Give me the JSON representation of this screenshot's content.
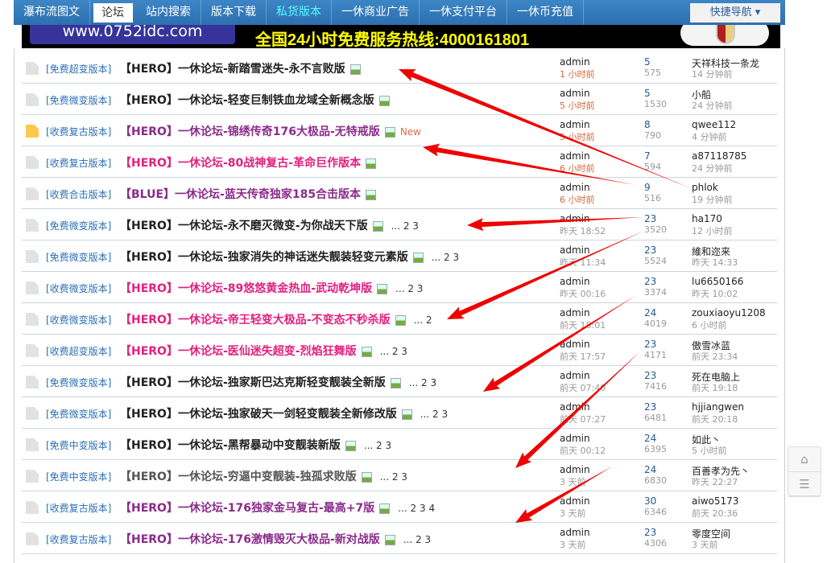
{
  "nav": {
    "items": [
      "瀑布流图文",
      "论坛",
      "站内搜索",
      "版本下载",
      "私货版本",
      "一休商业广告",
      "一休支付平台",
      "一休币充值"
    ],
    "active": 1,
    "highlight": 4,
    "quick": "快捷导航 ▾"
  },
  "banner": {
    "url": "www.0752idc.com",
    "hotline": "全国24小时免费服务热线:4000161801"
  },
  "colors": {
    "nav": "#2c6fae",
    "category": "#2a6fb6",
    "purple": "#8a2b8a",
    "magenta": "#e2207e",
    "arrow": "#ee0000"
  },
  "threads": [
    {
      "cat": "[免费超变版本]",
      "title": "【HERO】一休论坛-新踏雪迷失-永不言败版",
      "style": "black",
      "pages": "",
      "new": "",
      "author": "admin",
      "date": "1 小时前",
      "recent": true,
      "replies": "5",
      "views": "575",
      "last": "天祥科技一条龙",
      "ltime": "14 分钟前"
    },
    {
      "cat": "[免费微变版本]",
      "title": "【HERO】一休论坛-轻变巨制铁血龙域全新概念版",
      "style": "black",
      "pages": "",
      "new": "",
      "author": "admin",
      "date": "5 小时前",
      "recent": true,
      "replies": "5",
      "views": "1530",
      "last": "小船",
      "ltime": "24 分钟前"
    },
    {
      "cat": "[收费复古版本]",
      "title": "【HERO】一休论坛-锦绣传奇176大极品-无特戒版",
      "style": "purple",
      "pages": "",
      "new": "New",
      "author": "admin",
      "date": "5 小时前",
      "recent": true,
      "replies": "8",
      "views": "790",
      "last": "qwee112",
      "ltime": "4 分钟前"
    },
    {
      "cat": "[收费复古版本]",
      "title": "【HERO】一休论坛-80战神复古-革命巨作版本",
      "style": "magenta",
      "pages": "",
      "new": "",
      "author": "admin",
      "date": "6 小时前",
      "recent": true,
      "replies": "7",
      "views": "594",
      "last": "a87118785",
      "ltime": "24 分钟前"
    },
    {
      "cat": "[收费合击版本]",
      "title": "【BLUE】一休论坛-蓝天传奇独家185合击版本",
      "style": "purple",
      "pages": "",
      "new": "",
      "author": "admin",
      "date": "6 小时前",
      "recent": true,
      "replies": "9",
      "views": "516",
      "last": "phlok",
      "ltime": "19 分钟前"
    },
    {
      "cat": "[免费微变版本]",
      "title": "【HERO】一休论坛-永不磨灭微变-为你战天下版",
      "style": "black",
      "pages": "... 2  3",
      "new": "",
      "author": "admin",
      "date": "昨天 18:52",
      "recent": false,
      "replies": "23",
      "views": "3520",
      "last": "ha170",
      "ltime": "12 小时前"
    },
    {
      "cat": "[免费微变版本]",
      "title": "【HERO】一休论坛-独家消失的神话迷失靓装轻变元素版",
      "style": "black",
      "pages": "... 2  3",
      "new": "",
      "author": "admin",
      "date": "昨天 11:34",
      "recent": false,
      "replies": "23",
      "views": "5524",
      "last": "維和迩来",
      "ltime": "昨天 14:33"
    },
    {
      "cat": "[收费微变版本]",
      "title": "【HERO】一休论坛-89悠悠黄金热血-武动乾坤版",
      "style": "magenta",
      "pages": "... 2  3",
      "new": "",
      "author": "admin",
      "date": "昨天 00:16",
      "recent": false,
      "replies": "23",
      "views": "3374",
      "last": "lu6650166",
      "ltime": "昨天 10:02"
    },
    {
      "cat": "[收费微变版本]",
      "title": "【HERO】一休论坛-帝王轻变大极品-不变态不秒杀版",
      "style": "magenta",
      "pages": "... 2",
      "new": "",
      "author": "admin",
      "date": "前天 18:01",
      "recent": false,
      "replies": "24",
      "views": "4019",
      "last": "zouxiaoyu1208",
      "ltime": "6 小时前"
    },
    {
      "cat": "[收费超变版本]",
      "title": "【HERO】一休论坛-医仙迷失超变-烈焰狂舞版",
      "style": "magenta",
      "pages": "... 2  3",
      "new": "",
      "author": "admin",
      "date": "前天 17:57",
      "recent": false,
      "replies": "23",
      "views": "4171",
      "last": "傲雪冰蓝",
      "ltime": "前天 23:34"
    },
    {
      "cat": "[免费微变版本]",
      "title": "【HERO】一休论坛-独家斯巴达克斯轻变靓装全新版",
      "style": "black",
      "pages": "... 2  3",
      "new": "",
      "author": "admin",
      "date": "前天 07:40",
      "recent": false,
      "replies": "23",
      "views": "7416",
      "last": "死在电脑上",
      "ltime": "前天 19:18"
    },
    {
      "cat": "[免费微变版本]",
      "title": "【HERO】一休论坛-独家破天一剑轻变靓装全新修改版",
      "style": "black",
      "pages": "... 2  3",
      "new": "",
      "author": "admin",
      "date": "前天 07:27",
      "recent": false,
      "replies": "23",
      "views": "6481",
      "last": "hjjiangwen",
      "ltime": "前天 20:18"
    },
    {
      "cat": "[免费中变版本]",
      "title": "【HERO】一休论坛-黑帮暴动中变靓装新版",
      "style": "black",
      "pages": "... 2  3",
      "new": "",
      "author": "admin",
      "date": "前天 00:12",
      "recent": false,
      "replies": "24",
      "views": "6395",
      "last": "如此丶",
      "ltime": "5 小时前"
    },
    {
      "cat": "[免费中变版本]",
      "title": "【HERO】一休论坛-穷逼中变靓装-独孤求败版",
      "style": "gray",
      "pages": "... 2  3",
      "new": "",
      "author": "admin",
      "date": "3 天前",
      "recent": false,
      "replies": "24",
      "views": "6830",
      "last": "百善孝为先丶",
      "ltime": "昨天 22:27"
    },
    {
      "cat": "[收费复古版本]",
      "title": "【HERO】一休论坛-176独家金马复古-最高+7版",
      "style": "purple",
      "pages": "... 2  3  4",
      "new": "",
      "author": "admin",
      "date": "3 天前",
      "recent": false,
      "replies": "30",
      "views": "6346",
      "last": "aiwo5173",
      "ltime": "前天 20:36"
    },
    {
      "cat": "[收费复古版本]",
      "title": "【HERO】一休论坛-176激情毁灭大极品-新对战版",
      "style": "purple",
      "pages": "... 2  3",
      "new": "",
      "author": "admin",
      "date": "3 天前",
      "recent": false,
      "replies": "23",
      "views": "4306",
      "last": "零度空间",
      "ltime": "3 天前"
    }
  ],
  "side": {
    "top_icon": "back-to-top-icon",
    "list_icon": "list-icon"
  }
}
